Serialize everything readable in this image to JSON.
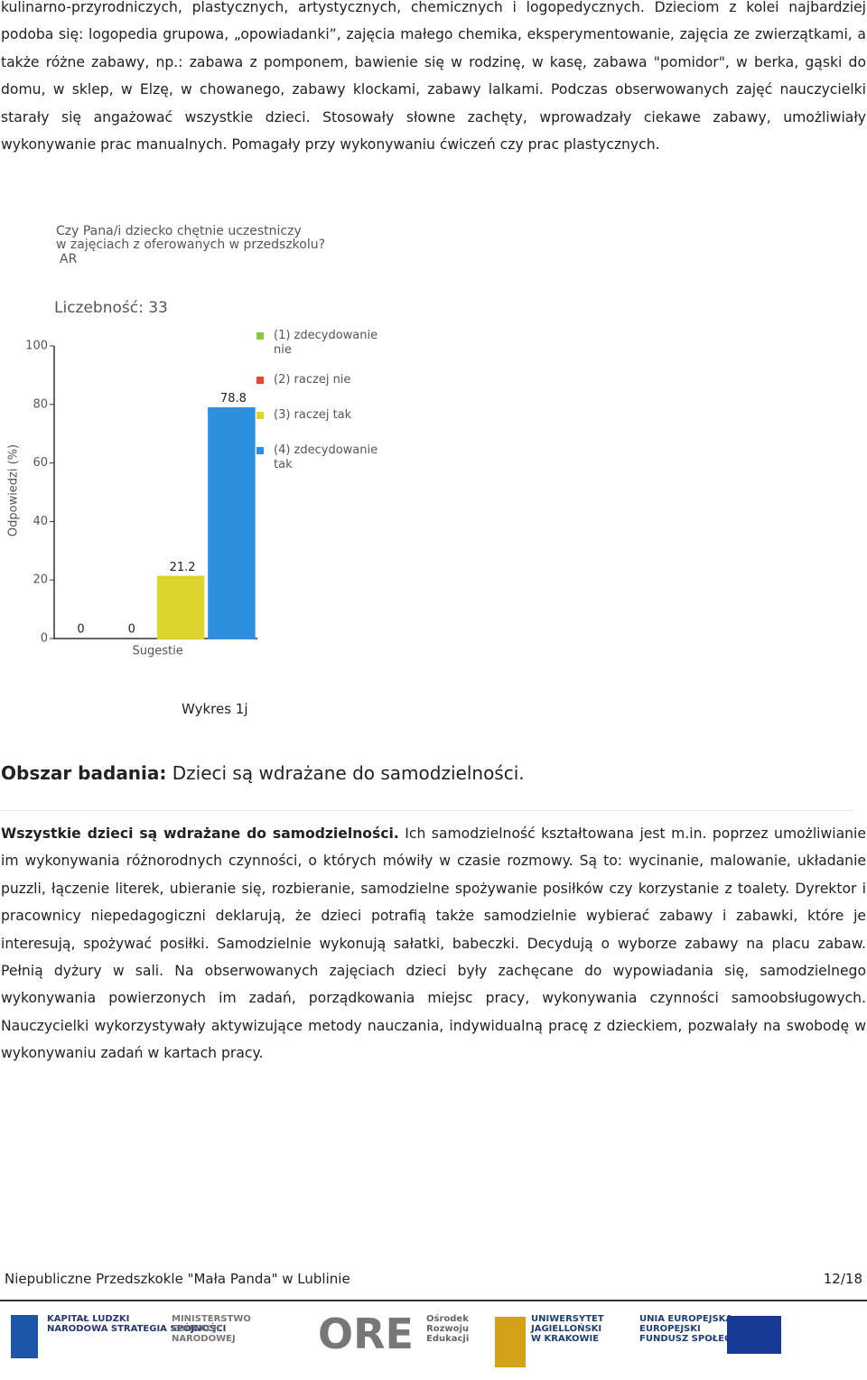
{
  "paragraphs": [
    "kulinarno-przyrodniczych, plastycznych, artystycznych, chemicznych i logopedycznych. Dzieciom z kolei najbardziej podoba się: logopedia grupowa, „opowiadanki”, zajęcia małego chemika, eksperymentowanie, zajęcia ze zwierzątkami, a także różne zabawy, np.: zabawa z pomponem, bawienie się w rodzinę, w kasę, zabawa \"pomidor\", w berka, gąski do domu, w sklep, w Elzę, w chowanego, zabawy klockami, zabawy lalkami. Podczas obserwowanych zajęć nauczycielki starały się angażować wszystkie dzieci. Stosowały słowne zachęty, wprowadzały ciekawe zabawy, umożliwiały wykonywanie prac manualnych. Pomagały przy wykonywaniu ćwiczeń czy prac plastycznych."
  ],
  "chart_data": {
    "type": "bar",
    "title_lines": [
      "Czy Pana/i dziecko chętnie uczestniczy",
      "w zajęciach z oferowanych w przedszkolu?"
    ],
    "subtitle": "AR",
    "annotation": "Liczebność: 33",
    "y_label": "Odpowiedzi (%)",
    "categories": [
      "Sugestie"
    ],
    "series": [
      {
        "name": "(1) zdecydowanie nie",
        "color": "#8cc63e",
        "values": [
          0
        ]
      },
      {
        "name": "(2) raczej nie",
        "color": "#e2492a",
        "values": [
          0
        ]
      },
      {
        "name": "(3) raczej tak",
        "color": "#ddd52c",
        "values": [
          21.2
        ]
      },
      {
        "name": "(4) zdecydowanie tak",
        "color": "#2c8fe0",
        "values": [
          78.8
        ]
      }
    ],
    "ylim": [
      0,
      100
    ],
    "yticks": [
      0,
      20,
      40,
      60,
      80,
      100
    ]
  },
  "caption": "Wykres 1j",
  "heading": {
    "label": "Obszar badania:",
    "text": "Dzieci są wdrażane do samodzielności."
  },
  "section": {
    "lead": "Wszystkie dzieci są wdrażane do samodzielności.",
    "text": "Ich samodzielność kształtowana jest m.in. poprzez umożliwianie im wykonywania różnorodnych czynności, o których mówiły w czasie rozmowy. Są to: wycinanie, malowanie, układanie puzzli, łączenie literek, ubieranie się, rozbieranie, samodzielne spożywanie posiłków czy korzystanie z toalety. Dyrektor i pracownicy niepedagogiczni deklarują, że dzieci potrafią także samodzielnie wybierać zabawy i zabawki, które je interesują, spożywać posiłki. Samodzielnie wykonują sałatki, babeczki. Decydują o wyborze zabawy na placu zabaw. Pełnią dyżury w sali. Na obserwowanych zajęciach dzieci były zachęcane do wypowiadania się, samodzielnego wykonywania powierzonych im zadań, porządkowania miejsc pracy, wykonywania czynności samoobsługowych. Nauczycielki wykorzystywały aktywizujące metody nauczania, indywidualną pracę z dzieckiem, pozwalały na swobodę w wykonywaniu zadań w kartach pracy."
  },
  "footer": {
    "left": "Niepubliczne Przedszkokle \"Mała Panda\" w Lublinie",
    "right": "12/18"
  },
  "logos": [
    {
      "lines": [
        "KAPITAŁ LUDZKI",
        "NARODOWA STRATEGIA SPÓJNOŚCI"
      ]
    },
    {
      "lines": [
        "MINISTERSTWO",
        "EDUKACJI",
        "NARODOWEJ"
      ]
    },
    {
      "lines": [
        "ORE",
        "Ośrodek",
        "Rozwoju",
        "Edukacji"
      ]
    },
    {
      "lines": [
        "UNIWERSYTET",
        "JAGIELLOŃSKI",
        "W KRAKOWIE"
      ]
    },
    {
      "lines": [
        "UNIA EUROPEJSKA",
        "EUROPEJSKI",
        "FUNDUSZ SPOŁECZNY"
      ]
    }
  ]
}
